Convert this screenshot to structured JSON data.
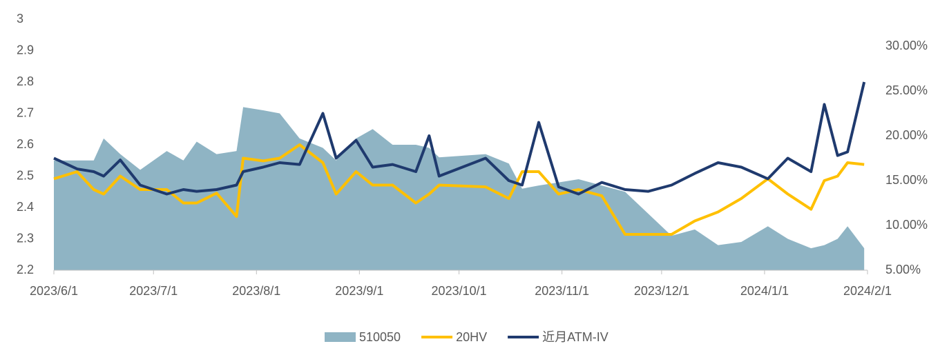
{
  "chart_data": {
    "type": "line",
    "x": [
      "2023/6/1",
      "2023/6/8",
      "2023/6/13",
      "2023/6/16",
      "2023/6/21",
      "2023/6/27",
      "2023/7/5",
      "2023/7/10",
      "2023/7/14",
      "2023/7/20",
      "2023/7/26",
      "2023/7/28",
      "2023/8/3",
      "2023/8/8",
      "2023/8/14",
      "2023/8/21",
      "2023/8/25",
      "2023/8/31",
      "2023/9/5",
      "2023/9/11",
      "2023/9/18",
      "2023/9/22",
      "2023/9/25",
      "2023/10/9",
      "2023/10/16",
      "2023/10/20",
      "2023/10/25",
      "2023/10/31",
      "2023/11/6",
      "2023/11/13",
      "2023/11/20",
      "2023/11/27",
      "2023/12/4",
      "2023/12/11",
      "2023/12/18",
      "2023/12/25",
      "2024/1/2",
      "2024/1/8",
      "2024/1/15",
      "2024/1/19",
      "2024/1/23",
      "2024/1/26",
      "2024/1/31"
    ],
    "series": [
      {
        "name": "510050",
        "kind": "area",
        "color": "#8fb4c4",
        "axis": "y",
        "values": [
          2.55,
          2.55,
          2.55,
          2.62,
          2.57,
          2.52,
          2.58,
          2.55,
          2.61,
          2.57,
          2.58,
          2.72,
          2.71,
          2.7,
          2.62,
          2.59,
          2.55,
          2.62,
          2.65,
          2.6,
          2.6,
          2.59,
          2.56,
          2.57,
          2.54,
          2.46,
          2.47,
          2.48,
          2.49,
          2.47,
          2.45,
          2.38,
          2.31,
          2.33,
          2.28,
          2.29,
          2.34,
          2.3,
          2.27,
          2.28,
          2.3,
          2.34,
          2.27
        ]
      },
      {
        "name": "20HV",
        "kind": "line",
        "color": "#ffc000",
        "axis": "y2",
        "values": [
          15.2,
          16,
          14,
          13.5,
          15.5,
          14,
          14,
          12.5,
          12.5,
          13.6,
          11,
          17.5,
          17.2,
          17.5,
          19,
          17,
          13.5,
          16,
          14.5,
          14.5,
          12.5,
          13.5,
          14.5,
          14.3,
          13,
          16,
          16,
          13.5,
          14,
          13.3,
          9,
          9,
          9,
          10.5,
          11.5,
          13,
          15.2,
          13.5,
          11.8,
          15,
          15.5,
          17,
          16.8
        ]
      },
      {
        "name": "近月ATM-IV",
        "kind": "line",
        "color": "#1f3a6e",
        "axis": "y2",
        "values": [
          17.5,
          16.3,
          16,
          15.5,
          17.3,
          14.5,
          13.5,
          14,
          13.8,
          14,
          14.5,
          16,
          16.5,
          17,
          16.8,
          22.5,
          17.5,
          19.5,
          16.5,
          16.8,
          16,
          20,
          15.5,
          17.5,
          15,
          14.5,
          21.5,
          14.3,
          13.5,
          14.8,
          14,
          13.8,
          14.5,
          15.8,
          17,
          16.5,
          15.2,
          17.5,
          16,
          23.5,
          17.8,
          18.2,
          26
        ]
      }
    ],
    "xlim": [
      "2023/6/1",
      "2024/2/1"
    ],
    "xticks": [
      "2023/6/1",
      "2023/7/1",
      "2023/8/1",
      "2023/9/1",
      "2023/10/1",
      "2023/11/1",
      "2023/12/1",
      "2024/1/1",
      "2024/2/1"
    ],
    "ylim": [
      2.2,
      3
    ],
    "yticks": [
      2.2,
      2.3,
      2.4,
      2.5,
      2.6,
      2.7,
      2.8,
      2.9,
      3
    ],
    "y2lim": [
      5,
      33
    ],
    "y2ticks": [
      {
        "value": 5,
        "label": "5.00%"
      },
      {
        "value": 10,
        "label": "10.00%"
      },
      {
        "value": 15,
        "label": "15.00%"
      },
      {
        "value": 20,
        "label": "20.00%"
      },
      {
        "value": 25,
        "label": "25.00%"
      },
      {
        "value": 30,
        "label": "30.00%"
      }
    ],
    "legend": "bottom"
  }
}
